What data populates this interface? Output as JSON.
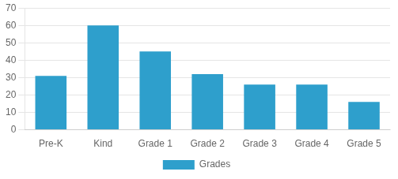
{
  "chart_data": {
    "type": "bar",
    "categories": [
      "Pre-K",
      "Kind",
      "Grade 1",
      "Grade 2",
      "Grade 3",
      "Grade 4",
      "Grade 5"
    ],
    "series": [
      {
        "name": "Grades",
        "color": "#2E9FCC",
        "values": [
          31,
          60,
          45,
          32,
          26,
          26,
          16
        ]
      }
    ],
    "ylim": [
      0,
      70
    ],
    "yticks": [
      0,
      10,
      20,
      30,
      40,
      50,
      60,
      70
    ],
    "grid": true,
    "legend": "bottom"
  }
}
